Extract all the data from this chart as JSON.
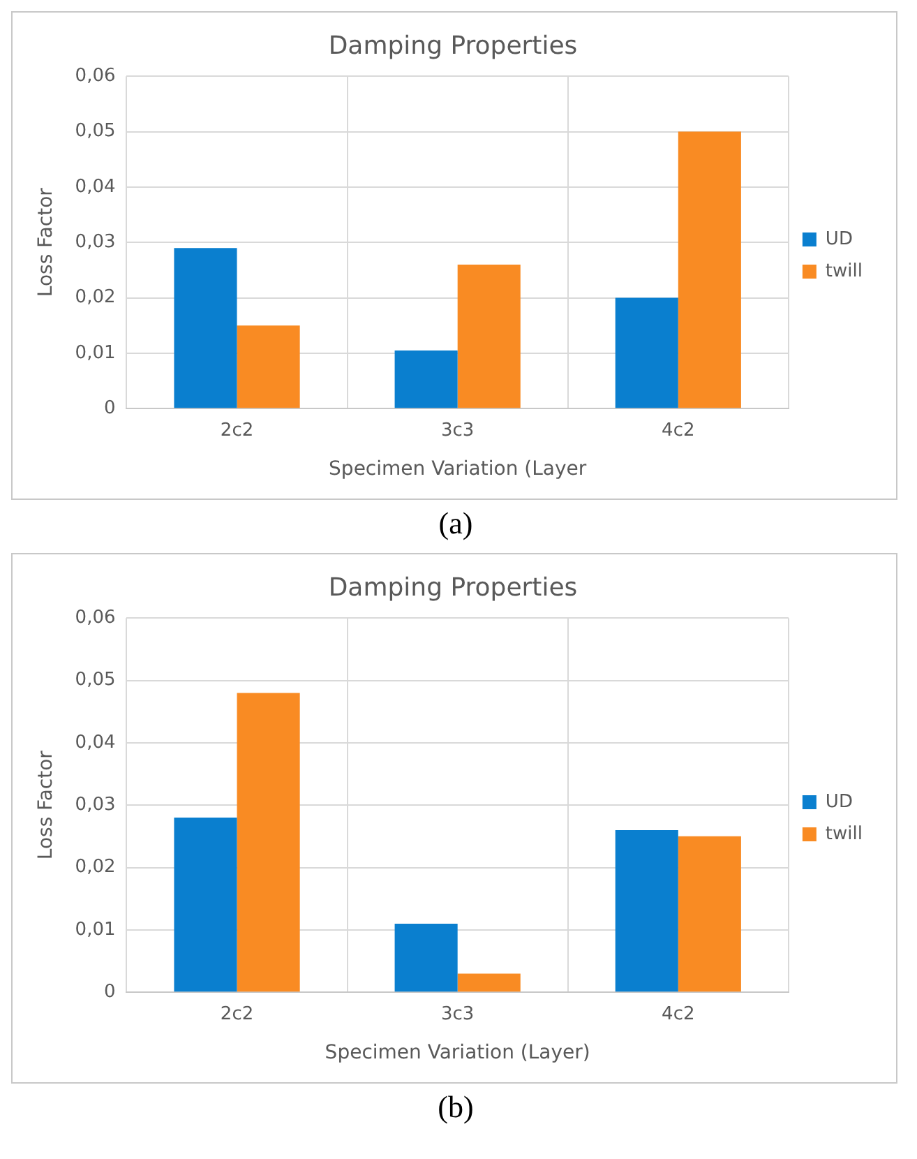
{
  "chart_data": [
    {
      "type": "bar",
      "title": "Damping Properties",
      "xlabel": "Specimen Variation (Layer",
      "ylabel": "Loss Factor",
      "categories": [
        "2c2",
        "3c3",
        "4c2"
      ],
      "series": [
        {
          "name": "UD",
          "color": "#0a7fcf",
          "values": [
            0.029,
            0.0105,
            0.02
          ]
        },
        {
          "name": "twill",
          "color": "#f98b23",
          "values": [
            0.015,
            0.026,
            0.05
          ]
        }
      ],
      "ylim": [
        0,
        0.06
      ],
      "yticks": [
        {
          "value": 0,
          "label": "0"
        },
        {
          "value": 0.01,
          "label": "0,01"
        },
        {
          "value": 0.02,
          "label": "0,02"
        },
        {
          "value": 0.03,
          "label": "0,03"
        },
        {
          "value": 0.04,
          "label": "0,04"
        },
        {
          "value": 0.05,
          "label": "0,05"
        },
        {
          "value": 0.06,
          "label": "0,06"
        }
      ],
      "grid": true,
      "legend": "right",
      "annotations": [
        "(a)"
      ]
    },
    {
      "type": "bar",
      "title": "Damping Properties",
      "xlabel": "Specimen Variation (Layer)",
      "ylabel": "Loss Factor",
      "categories": [
        "2c2",
        "3c3",
        "4c2"
      ],
      "series": [
        {
          "name": "UD",
          "color": "#0a7fcf",
          "values": [
            0.028,
            0.011,
            0.026
          ]
        },
        {
          "name": "twill",
          "color": "#f98b23",
          "values": [
            0.048,
            0.003,
            0.025
          ]
        }
      ],
      "ylim": [
        0,
        0.06
      ],
      "yticks": [
        {
          "value": 0,
          "label": "0"
        },
        {
          "value": 0.01,
          "label": "0,01"
        },
        {
          "value": 0.02,
          "label": "0,02"
        },
        {
          "value": 0.03,
          "label": "0,03"
        },
        {
          "value": 0.04,
          "label": "0,04"
        },
        {
          "value": 0.05,
          "label": "0,05"
        },
        {
          "value": 0.06,
          "label": "0,06"
        }
      ],
      "grid": true,
      "legend": "right",
      "annotations": [
        "(b)"
      ]
    }
  ]
}
